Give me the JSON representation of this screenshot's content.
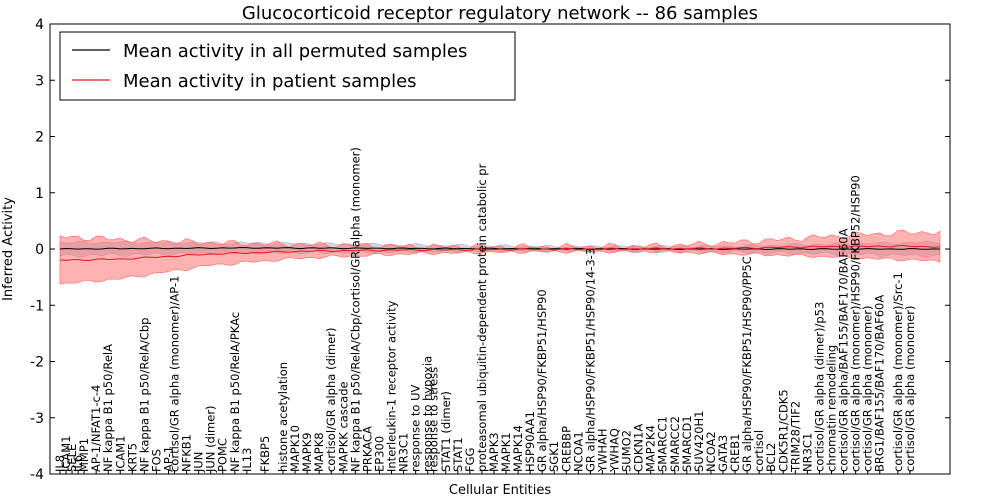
{
  "chart_data": {
    "type": "line",
    "title": "Glucocorticoid receptor regulatory network -- 86 samples",
    "xlabel": "Cellular Entities",
    "ylabel": "Inferred Activity",
    "ylim": [
      -4,
      4
    ],
    "yticks": [
      "-4",
      "-3",
      "-2",
      "-1",
      "0",
      "1",
      "2",
      "3",
      "4"
    ],
    "legend": {
      "position": "top-left",
      "entries": [
        {
          "name": "Mean activity in all permuted samples",
          "color": "#000000"
        },
        {
          "name": "Mean activity in patient samples",
          "color": "#e41a1c"
        }
      ]
    },
    "x_count": 147,
    "entity_labels": [
      {
        "i": 0,
        "text": "IL8"
      },
      {
        "i": 1,
        "text": "ICAM1"
      },
      {
        "i": 2,
        "text": "SELE"
      },
      {
        "i": 3,
        "text": "IL6"
      },
      {
        "i": 4,
        "text": "MMP1"
      },
      {
        "i": 6,
        "text": "AP-1/NFAT1-c-4"
      },
      {
        "i": 8,
        "text": "NF kappa B1 p50/RelA"
      },
      {
        "i": 10,
        "text": "ICAM1"
      },
      {
        "i": 12,
        "text": "KRT5"
      },
      {
        "i": 14,
        "text": "NF kappa B1 p50/RelA/Cbp"
      },
      {
        "i": 16,
        "text": "FOS"
      },
      {
        "i": 18,
        "text": "AP-1"
      },
      {
        "i": 19,
        "text": "cortisol/GR alpha (monomer)/AP-1"
      },
      {
        "i": 21,
        "text": "NFKB1"
      },
      {
        "i": 23,
        "text": "JUN"
      },
      {
        "i": 25,
        "text": "JUN (dimer)"
      },
      {
        "i": 27,
        "text": "POMC"
      },
      {
        "i": 29,
        "text": "NF kappa B1 p50/RelA/PKAc"
      },
      {
        "i": 31,
        "text": "IL13"
      },
      {
        "i": 34,
        "text": "FKBP5"
      },
      {
        "i": 37,
        "text": "histone acetylation"
      },
      {
        "i": 39,
        "text": "MAPK10"
      },
      {
        "i": 41,
        "text": "MAPK9"
      },
      {
        "i": 43,
        "text": "MAPK8"
      },
      {
        "i": 45,
        "text": "cortisol/GR alpha (dimer)"
      },
      {
        "i": 47,
        "text": "MAPKK cascade"
      },
      {
        "i": 49,
        "text": "NF kappa B1 p50/RelA/Cbp/cortisol/GR alpha (monomer)"
      },
      {
        "i": 51,
        "text": "PRKACA"
      },
      {
        "i": 53,
        "text": "EP300"
      },
      {
        "i": 55,
        "text": "Interleukin-1 receptor activity"
      },
      {
        "i": 57,
        "text": "NR3C1"
      },
      {
        "i": 59,
        "text": "response to UV"
      },
      {
        "i": 61,
        "text": "response to hypoxia"
      },
      {
        "i": 62,
        "text": "response to stress"
      },
      {
        "i": 64,
        "text": "STAT1 (dimer)"
      },
      {
        "i": 66,
        "text": "STAT1"
      },
      {
        "i": 68,
        "text": "FGG"
      },
      {
        "i": 70,
        "text": "proteasomal ubiquitin-dependent protein catabolic pr"
      },
      {
        "i": 72,
        "text": "MAPK3"
      },
      {
        "i": 74,
        "text": "MAPK1"
      },
      {
        "i": 76,
        "text": "MAPK14"
      },
      {
        "i": 78,
        "text": "HSP90AA1"
      },
      {
        "i": 80,
        "text": "GR alpha/HSP90/FKBP51/HSP90"
      },
      {
        "i": 82,
        "text": "SGK1"
      },
      {
        "i": 84,
        "text": "CREBBP"
      },
      {
        "i": 86,
        "text": "NCOA1"
      },
      {
        "i": 88,
        "text": "GR alpha/HSP90/FKBP51/HSP90/14-3-3"
      },
      {
        "i": 90,
        "text": "YWHAH"
      },
      {
        "i": 92,
        "text": "YWHAQ"
      },
      {
        "i": 94,
        "text": "SUMO2"
      },
      {
        "i": 96,
        "text": "CDKN1A"
      },
      {
        "i": 98,
        "text": "MAP2K4"
      },
      {
        "i": 100,
        "text": "SMARCC1"
      },
      {
        "i": 102,
        "text": "SMARCC2"
      },
      {
        "i": 104,
        "text": "SMARCD1"
      },
      {
        "i": 106,
        "text": "SUV420H1"
      },
      {
        "i": 108,
        "text": "NCOA2"
      },
      {
        "i": 110,
        "text": "GATA3"
      },
      {
        "i": 112,
        "text": "CREB1"
      },
      {
        "i": 114,
        "text": "GR alpha/HSP90/FKBP51/HSP90/PP5C"
      },
      {
        "i": 116,
        "text": "cortisol"
      },
      {
        "i": 118,
        "text": "BCL2"
      },
      {
        "i": 120,
        "text": "CDK5R1/CDK5"
      },
      {
        "i": 122,
        "text": "TRIM28/TIF2"
      },
      {
        "i": 124,
        "text": "NR3C1"
      },
      {
        "i": 126,
        "text": "cortisol/GR alpha (dimer)/p53"
      },
      {
        "i": 128,
        "text": "chromatin remodeling"
      },
      {
        "i": 130,
        "text": "cortisol/GR alpha/BAF155/BAF170/BAF60A"
      },
      {
        "i": 132,
        "text": "cortisol/GR alpha (monomer)/HSP90/FKBP52/HSP90"
      },
      {
        "i": 134,
        "text": "cortisol/GR alpha (monomer)"
      },
      {
        "i": 136,
        "text": "BRG1/BAF155/BAF170/BAF60A"
      },
      {
        "i": 139,
        "text": "cortisol/GR alpha (monomer)/Src-1"
      },
      {
        "i": 141,
        "text": "cortisol/GR alpha (monomer)"
      }
    ],
    "series": [
      {
        "name": "Mean activity in all permuted samples",
        "color": "#000000",
        "knots": [
          [
            0,
            0.0
          ],
          [
            30,
            0.02
          ],
          [
            60,
            0.01
          ],
          [
            100,
            0.0
          ],
          [
            146,
            0.0
          ]
        ],
        "band_knots": [
          [
            0,
            0.12
          ],
          [
            40,
            0.08
          ],
          [
            80,
            0.04
          ],
          [
            110,
            0.05
          ],
          [
            146,
            0.12
          ]
        ],
        "band_color": "#b3b3c7"
      },
      {
        "name": "Mean activity in patient samples",
        "color": "#e41a1c",
        "knots": [
          [
            0,
            -0.2
          ],
          [
            10,
            -0.18
          ],
          [
            25,
            -0.09
          ],
          [
            40,
            -0.04
          ],
          [
            55,
            -0.02
          ],
          [
            70,
            -0.01
          ],
          [
            90,
            0.0
          ],
          [
            110,
            0.01
          ],
          [
            125,
            0.04
          ],
          [
            140,
            0.05
          ],
          [
            146,
            0.04
          ]
        ],
        "band_knots": [
          [
            0,
            0.42
          ],
          [
            10,
            0.35
          ],
          [
            25,
            0.2
          ],
          [
            40,
            0.12
          ],
          [
            60,
            0.06
          ],
          [
            80,
            0.04
          ],
          [
            100,
            0.05
          ],
          [
            120,
            0.14
          ],
          [
            135,
            0.22
          ],
          [
            146,
            0.26
          ]
        ],
        "band_color": "#ff6666"
      }
    ]
  }
}
